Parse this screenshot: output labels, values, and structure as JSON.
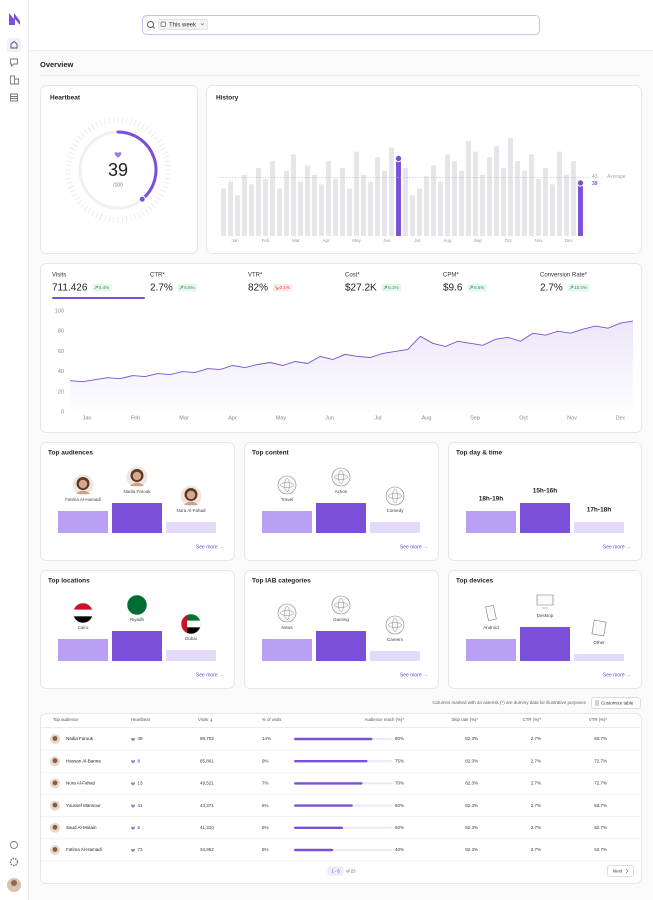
{
  "search": {
    "chip": "This week"
  },
  "page_title": "Overview",
  "chart_data": [
    {
      "type": "gauge",
      "title": "Heartbeat",
      "value": 39,
      "max_label": "/100",
      "ylim": [
        0,
        100
      ],
      "color": "#7b4fd8"
    },
    {
      "type": "bar",
      "title": "History",
      "values": [
        35,
        40,
        30,
        45,
        38,
        50,
        42,
        55,
        35,
        48,
        60,
        40,
        52,
        45,
        38,
        55,
        42,
        50,
        35,
        62,
        45,
        40,
        58,
        48,
        65,
        57,
        50,
        30,
        35,
        44,
        52,
        40,
        60,
        55,
        48,
        70,
        62,
        45,
        58,
        66,
        50,
        72,
        55,
        48,
        60,
        42,
        50,
        38,
        62,
        45,
        55,
        39
      ],
      "ylim": [
        0,
        100
      ],
      "xtick_labels": [
        "Jan",
        "Feb",
        "Mar",
        "Apr",
        "May",
        "Jun",
        "Jul",
        "Aug",
        "Sep",
        "Oct",
        "Nov",
        "Dec"
      ],
      "highlighted": [
        25,
        51
      ],
      "color": "#e6e6ea",
      "highlight_color": "#7b4fd8",
      "average": 43,
      "average_label": "Average"
    },
    {
      "type": "line",
      "metrics": [
        {
          "label": "Visits",
          "value": "711.426",
          "change": "6.4%",
          "trend": "up"
        },
        {
          "label": "CTR*",
          "value": "2.7%",
          "change": "6.6%",
          "trend": "up"
        },
        {
          "label": "VTR*",
          "value": "82%",
          "change": "0.1%",
          "trend": "down"
        },
        {
          "label": "Cost*",
          "value": "$27.2K",
          "change": "6.1%",
          "trend": "up"
        },
        {
          "label": "CPM*",
          "value": "$9.6",
          "change": "6.6%",
          "trend": "up"
        },
        {
          "label": "Conversion Rate*",
          "value": "2.7%",
          "change": "10.0%",
          "trend": "up"
        }
      ],
      "selected": 0,
      "values": [
        31,
        30,
        32,
        34,
        33,
        36,
        35,
        38,
        37,
        40,
        39,
        43,
        42,
        46,
        44,
        47,
        49,
        46,
        50,
        48,
        55,
        52,
        57,
        55,
        54,
        58,
        60,
        62,
        75,
        68,
        65,
        70,
        68,
        66,
        72,
        74,
        70,
        78,
        76,
        80,
        78,
        82,
        85,
        83,
        88,
        90
      ],
      "ylim": [
        0,
        100
      ],
      "yticks": [
        0,
        20,
        40,
        60,
        80,
        100
      ],
      "xtick_labels": [
        "Jan",
        "Feb",
        "Mar",
        "Apr",
        "May",
        "Jun",
        "Jul",
        "Aug",
        "Sep",
        "Oct",
        "Nov",
        "Dec"
      ],
      "color": "#7b4fd8",
      "grid": false
    },
    {
      "type": "bar",
      "title": "Top audiences",
      "categories": [
        "Fatima Al-Hamadi",
        "Nadia Farouk",
        "Nora Al-Fahad"
      ],
      "values": [
        22,
        30,
        11
      ],
      "ylim": [
        0,
        40
      ],
      "colors": [
        "#b9a0f2",
        "#7b4fd8",
        "#e4d9fb"
      ],
      "icon": "avatar",
      "link": "See more →"
    },
    {
      "type": "bar",
      "title": "Top content",
      "categories": [
        "Travel",
        "Action",
        "Comedy"
      ],
      "values": [
        22,
        30,
        11
      ],
      "ylim": [
        0,
        40
      ],
      "colors": [
        "#b9a0f2",
        "#7b4fd8",
        "#e4d9fb"
      ],
      "icon": "symbol",
      "link": "See more →"
    },
    {
      "type": "bar",
      "title": "Top day & time",
      "categories": [
        "18h-19h",
        "15h-16h",
        "17h-18h"
      ],
      "values": [
        22,
        30,
        11
      ],
      "ylim": [
        0,
        40
      ],
      "colors": [
        "#b9a0f2",
        "#7b4fd8",
        "#e4d9fb"
      ],
      "icon": "none",
      "link": "See more →"
    },
    {
      "type": "bar",
      "title": "Top locations",
      "categories": [
        "Cairo",
        "Riyadh",
        "Dubai"
      ],
      "values": [
        22,
        30,
        11
      ],
      "ylim": [
        0,
        40
      ],
      "colors": [
        "#b9a0f2",
        "#7b4fd8",
        "#e4d9fb"
      ],
      "icon": "flag",
      "link": "See more →"
    },
    {
      "type": "bar",
      "title": "Top IAB categories",
      "categories": [
        "News",
        "Gaming",
        "Careers"
      ],
      "values": [
        22,
        30,
        10
      ],
      "ylim": [
        0,
        40
      ],
      "colors": [
        "#b9a0f2",
        "#7b4fd8",
        "#e4d9fb"
      ],
      "icon": "symbol",
      "link": "See more →"
    },
    {
      "type": "bar",
      "title": "Top devices",
      "categories": [
        "Android",
        "Desktop",
        "Other"
      ],
      "values": [
        22,
        34,
        7
      ],
      "ylim": [
        0,
        40
      ],
      "colors": [
        "#b9a0f2",
        "#7b4fd8",
        "#e4d9fb"
      ],
      "icon": "device",
      "link": "See more →"
    }
  ],
  "table": {
    "note": "Columns marked with an asterisk (*) are dummy data for illustrative purposes",
    "button": "Customize table",
    "columns": [
      "Top audience",
      "Heartbeat",
      "Visits",
      "% of visits",
      "Audience reach (%)*",
      "Skip rate (%)*",
      "CTR (%)*",
      "VTR (%)*"
    ],
    "rows": [
      {
        "name": "Nadia Farouk",
        "heartbeat": 49,
        "visits": "98,703",
        "share": "14%",
        "reach": 80,
        "reach_label": "80%",
        "skip": "82.3%",
        "ctr": "2.7%",
        "vtr": "82.7%"
      },
      {
        "name": "Hassan Al-Banna",
        "heartbeat": 8,
        "visits": "65,861",
        "share": "9%",
        "reach": 75,
        "reach_label": "75%",
        "skip": "82.3%",
        "ctr": "2.7%",
        "vtr": "72.7%"
      },
      {
        "name": "Nora Al-Fahad",
        "heartbeat": 13,
        "visits": "49,521",
        "share": "7%",
        "reach": 70,
        "reach_label": "70%",
        "skip": "82.3%",
        "ctr": "2.7%",
        "vtr": "72.7%"
      },
      {
        "name": "Youssef Mansour",
        "heartbeat": 41,
        "visits": "43,371",
        "share": "6%",
        "reach": 60,
        "reach_label": "60%",
        "skip": "82.3%",
        "ctr": "2.7%",
        "vtr": "82.7%"
      },
      {
        "name": "Saud Al-Mutairi",
        "heartbeat": 6,
        "visits": "41,310",
        "share": "6%",
        "reach": 50,
        "reach_label": "50%",
        "skip": "82.3%",
        "ctr": "2.7%",
        "vtr": "82.7%"
      },
      {
        "name": "Fatima Al-Hamadi",
        "heartbeat": 73,
        "visits": "34,952",
        "share": "5%",
        "reach": 40,
        "reach_label": "40%",
        "skip": "82.3%",
        "ctr": "2.7%",
        "vtr": "52.7%"
      }
    ],
    "pagination": {
      "range": "1 - 6",
      "total": "of 23",
      "next": "Next"
    }
  }
}
